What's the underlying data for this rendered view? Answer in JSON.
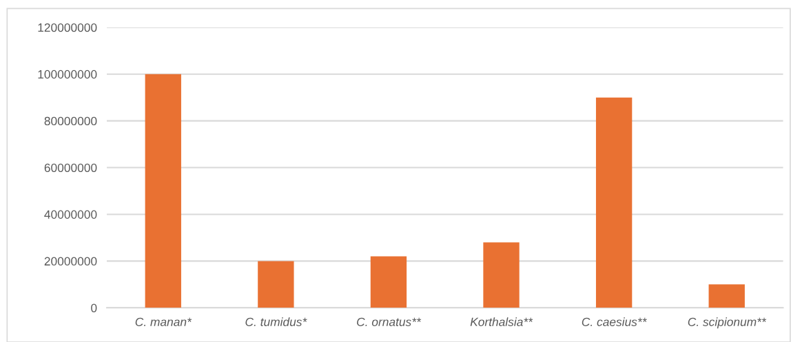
{
  "chart_data": {
    "type": "bar",
    "categories": [
      "C. manan*",
      "C. tumidus*",
      "C. ornatus**",
      "Korthalsia**",
      "C. caesius**",
      "C. scipionum**"
    ],
    "values": [
      100000000,
      20000000,
      22000000,
      28000000,
      90000000,
      10000000
    ],
    "color": "#e97132",
    "ylim": [
      0,
      120000000
    ],
    "yticks": [
      0,
      20000000,
      40000000,
      60000000,
      80000000,
      100000000,
      120000000
    ],
    "grid": "y"
  }
}
